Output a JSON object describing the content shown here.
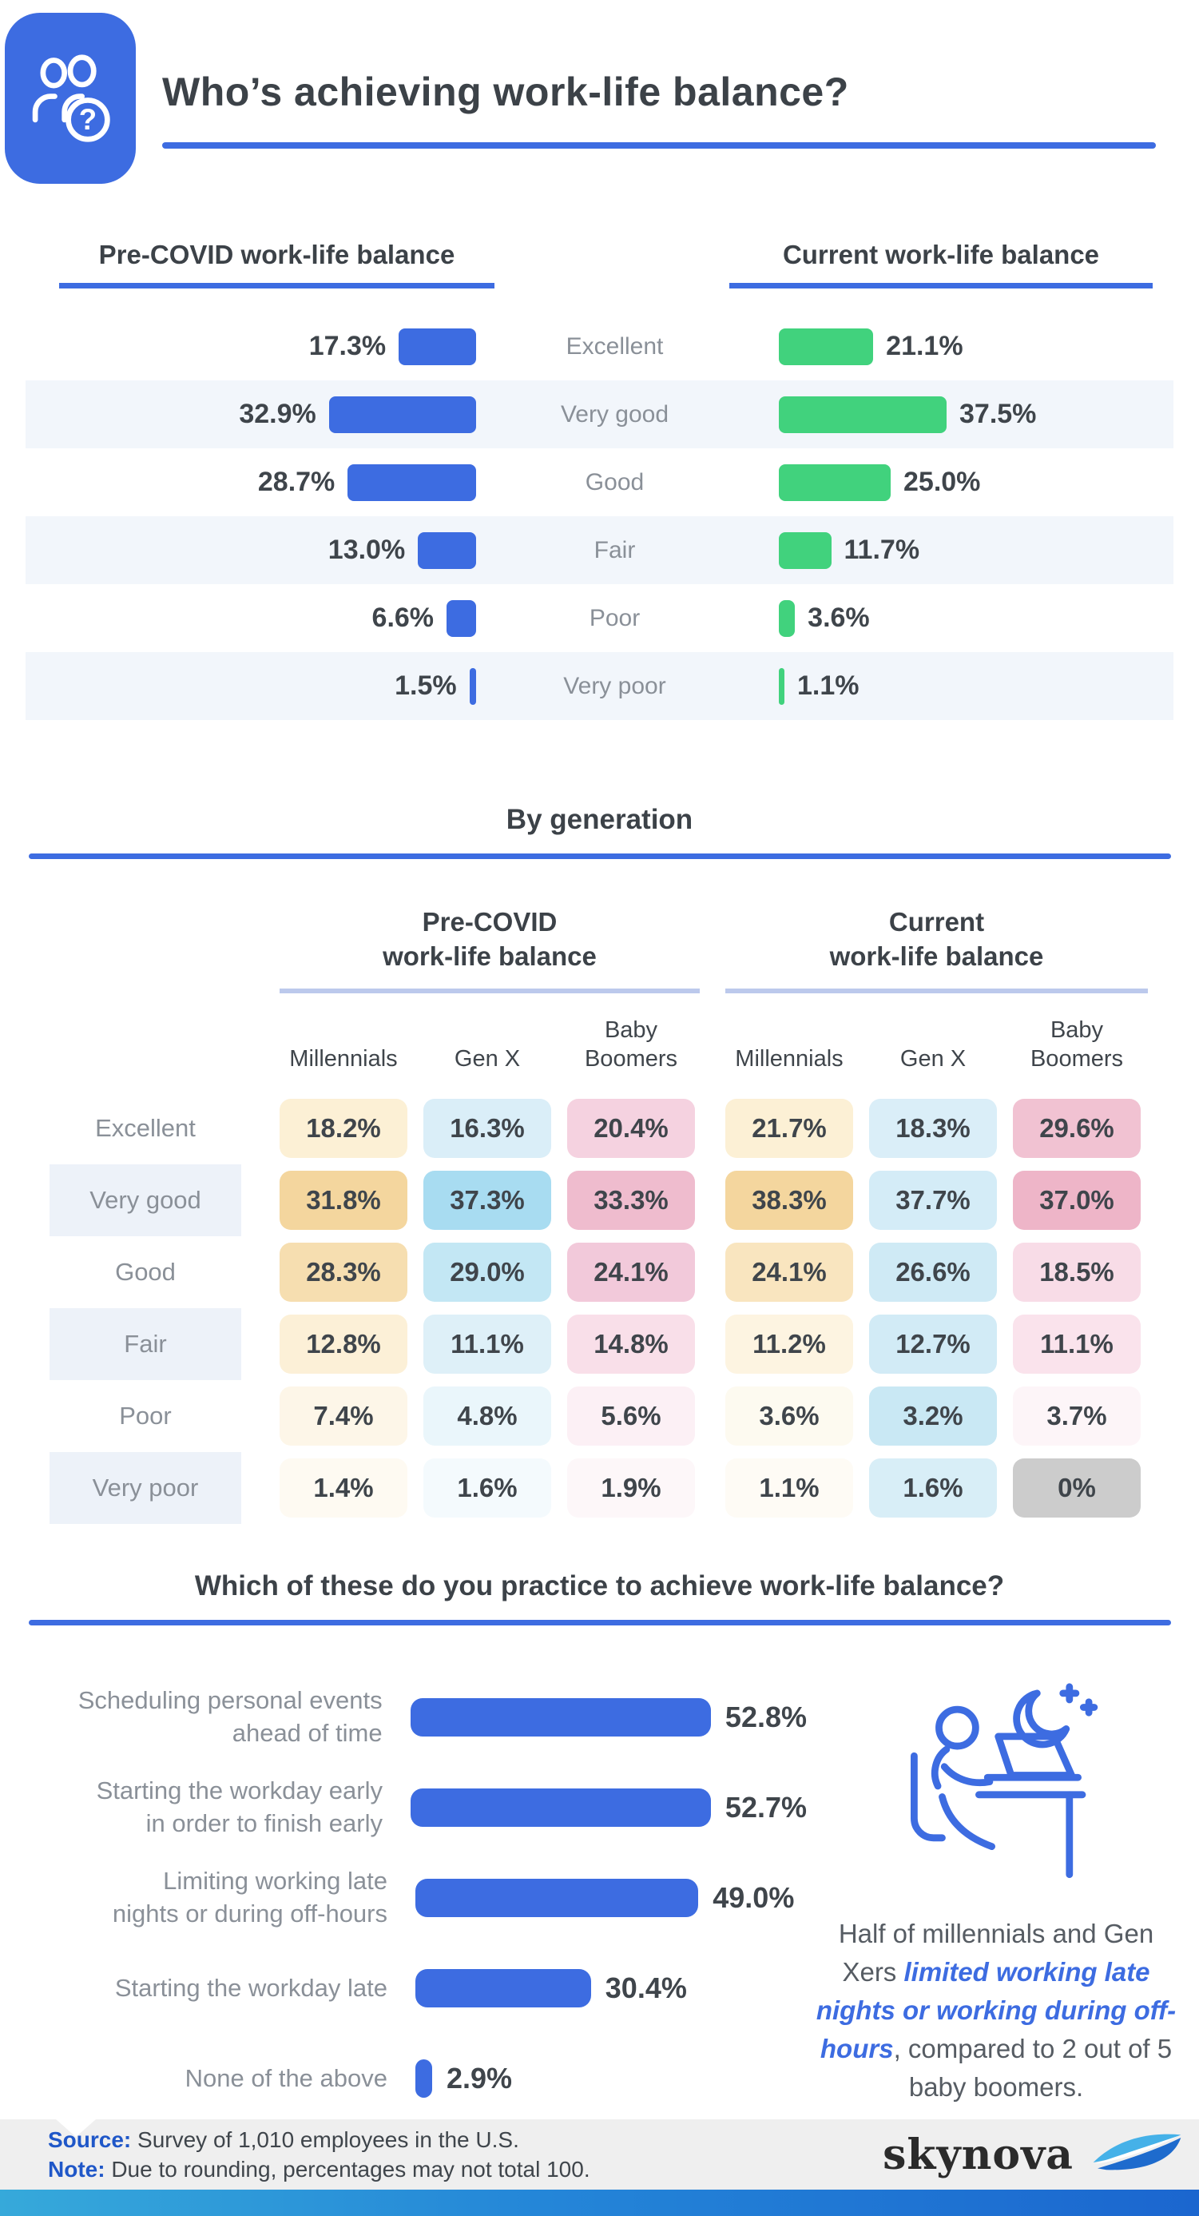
{
  "colors": {
    "accent_blue": "#3d6ce1",
    "bar_green": "#41d27d",
    "stripe": "#f2f6fb",
    "group_rule": "#bcc9ec",
    "footer_bg": "#efefef"
  },
  "icons": {
    "badge": "people-question-icon",
    "callout": "person-working-late-night-icon",
    "brand": "skynova-swoosh-icon"
  },
  "header": {
    "title": "Who’s achieving work-life balance?"
  },
  "comparison": {
    "left_title": "Pre-COVID work-life balance",
    "right_title": "Current work-life balance",
    "pre_labels": [
      "17.3%",
      "32.9%",
      "28.7%",
      "13.0%",
      "6.6%",
      "1.5%"
    ],
    "current_labels": [
      "21.1%",
      "37.5%",
      "25.0%",
      "11.7%",
      "3.6%",
      "1.1%"
    ]
  },
  "by_generation": {
    "title": "By generation",
    "group1_line1": "Pre-COVID",
    "group1_line2": "work-life balance",
    "group2_line1": "Current",
    "group2_line2": "work-life balance",
    "columns": [
      "Millennials",
      "Gen X",
      "Baby Boomers",
      "Millennials",
      "Gen X",
      "Baby Boomers"
    ],
    "rows": [
      {
        "label": "Excellent",
        "cells": [
          {
            "v": "18.2%",
            "bg": "#fcf0d5"
          },
          {
            "v": "16.3%",
            "bg": "#daeef8"
          },
          {
            "v": "20.4%",
            "bg": "#f5d2e0"
          },
          {
            "v": "21.7%",
            "bg": "#fcf0d5"
          },
          {
            "v": "18.3%",
            "bg": "#daeef8"
          },
          {
            "v": "29.6%",
            "bg": "#f1c2d2"
          }
        ]
      },
      {
        "label": "Very good",
        "cells": [
          {
            "v": "31.8%",
            "bg": "#f4d69e"
          },
          {
            "v": "37.3%",
            "bg": "#a8dcf1"
          },
          {
            "v": "33.3%",
            "bg": "#efbcce"
          },
          {
            "v": "38.3%",
            "bg": "#f4d69e"
          },
          {
            "v": "37.7%",
            "bg": "#d4ecf7"
          },
          {
            "v": "37.0%",
            "bg": "#eeb5c8"
          }
        ]
      },
      {
        "label": "Good",
        "cells": [
          {
            "v": "28.3%",
            "bg": "#f6deb0"
          },
          {
            "v": "29.0%",
            "bg": "#c3e7f4"
          },
          {
            "v": "24.1%",
            "bg": "#f2c9da"
          },
          {
            "v": "24.1%",
            "bg": "#f9e5bf"
          },
          {
            "v": "26.6%",
            "bg": "#cfeaf5"
          },
          {
            "v": "18.5%",
            "bg": "#f8dce7"
          }
        ]
      },
      {
        "label": "Fair",
        "cells": [
          {
            "v": "12.8%",
            "bg": "#fcf0d7"
          },
          {
            "v": "11.1%",
            "bg": "#def0f8"
          },
          {
            "v": "14.8%",
            "bg": "#f9dfe9"
          },
          {
            "v": "11.2%",
            "bg": "#fdf4e1"
          },
          {
            "v": "12.7%",
            "bg": "#d2ebf6"
          },
          {
            "v": "11.1%",
            "bg": "#fae3ec"
          }
        ]
      },
      {
        "label": "Poor",
        "cells": [
          {
            "v": "7.4%",
            "bg": "#fdf6e8"
          },
          {
            "v": "4.8%",
            "bg": "#eaf6fb"
          },
          {
            "v": "5.6%",
            "bg": "#fcf0f5"
          },
          {
            "v": "3.6%",
            "bg": "#fdfaf0"
          },
          {
            "v": "3.2%",
            "bg": "#c9e8f4"
          },
          {
            "v": "3.7%",
            "bg": "#fdf5f8"
          }
        ]
      },
      {
        "label": "Very poor",
        "cells": [
          {
            "v": "1.4%",
            "bg": "#fefaf2"
          },
          {
            "v": "1.6%",
            "bg": "#f4fafd"
          },
          {
            "v": "1.9%",
            "bg": "#fdf7f9"
          },
          {
            "v": "1.1%",
            "bg": "#fefbf5"
          },
          {
            "v": "1.6%",
            "bg": "#d8eef7"
          },
          {
            "v": "0%",
            "bg": "#cccccc"
          }
        ]
      }
    ]
  },
  "practices": {
    "title": "Which of these do you practice to achieve work-life balance?",
    "items": [
      {
        "l1": "Scheduling personal events",
        "l2": "ahead of time",
        "display": "52.8%"
      },
      {
        "l1": "Starting the workday early",
        "l2": "in order to finish early",
        "display": "52.7%"
      },
      {
        "l1": "Limiting working late",
        "l2": "nights or during off-hours",
        "display": "49.0%"
      },
      {
        "l1": "Starting the workday late",
        "l2": "",
        "display": "30.4%"
      },
      {
        "l1": "None of the above",
        "l2": "",
        "display": "2.9%"
      }
    ],
    "callout": {
      "pre": "Half of millennials and Gen Xers ",
      "em": "limited working late nights or working during off-hours",
      "post": ", compared to 2 out of 5 baby boomers."
    }
  },
  "footer": {
    "source_label": "Source:",
    "source_text": " Survey of 1,010 employees in the U.S.",
    "note_label": "Note:",
    "note_text": " Due to rounding, percentages may not total 100.",
    "brand": "skynova"
  },
  "chart_data": [
    {
      "type": "bar",
      "orientation": "horizontal",
      "unit": "%",
      "title": "Pre-COVID vs Current work-life balance",
      "categories": [
        "Excellent",
        "Very good",
        "Good",
        "Fair",
        "Poor",
        "Very poor"
      ],
      "series": [
        {
          "name": "Pre-COVID work-life balance",
          "values": [
            17.3,
            32.9,
            28.7,
            13.0,
            6.6,
            1.5
          ]
        },
        {
          "name": "Current work-life balance",
          "values": [
            21.1,
            37.5,
            25.0,
            11.7,
            3.6,
            1.1
          ]
        }
      ],
      "legend_position": "column headers",
      "grid": false
    },
    {
      "type": "heatmap",
      "unit": "%",
      "title": "By generation",
      "row_labels": [
        "Excellent",
        "Very good",
        "Good",
        "Fair",
        "Poor",
        "Very poor"
      ],
      "column_groups": [
        "Pre-COVID work-life balance",
        "Current work-life balance"
      ],
      "columns": [
        "Millennials",
        "Gen X",
        "Baby Boomers",
        "Millennials",
        "Gen X",
        "Baby Boomers"
      ],
      "values": [
        [
          18.2,
          16.3,
          20.4,
          21.7,
          18.3,
          29.6
        ],
        [
          31.8,
          37.3,
          33.3,
          38.3,
          37.7,
          37.0
        ],
        [
          28.3,
          29.0,
          24.1,
          24.1,
          26.6,
          18.5
        ],
        [
          12.8,
          11.1,
          14.8,
          11.2,
          12.7,
          11.1
        ],
        [
          7.4,
          4.8,
          5.6,
          3.6,
          3.2,
          3.7
        ],
        [
          1.4,
          1.6,
          1.9,
          1.1,
          1.6,
          0
        ]
      ]
    },
    {
      "type": "bar",
      "orientation": "horizontal",
      "unit": "%",
      "title": "Which of these do you practice to achieve work-life balance?",
      "categories": [
        "Scheduling personal events ahead of time",
        "Starting the workday early in order to finish early",
        "Limiting working late nights or during off-hours",
        "Starting the workday late",
        "None of the above"
      ],
      "values": [
        52.8,
        52.7,
        49.0,
        30.4,
        2.9
      ],
      "grid": false
    }
  ]
}
